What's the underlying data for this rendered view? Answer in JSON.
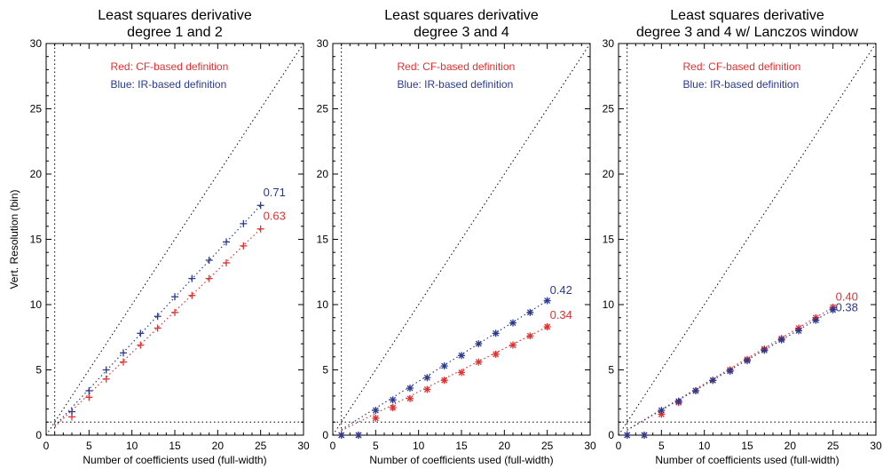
{
  "colors": {
    "red": "#e03131",
    "blue": "#2b3a8f",
    "axis": "#000000"
  },
  "ylabel_shared": "Vert. Resolution (bin)",
  "chart_data": [
    {
      "type": "scatter",
      "title": [
        "Least squares derivative",
        "degree 1 and 2"
      ],
      "xlabel": "Number of coefficients used (full-width)",
      "ylabel": "Vert. Resolution (bin)",
      "xlim": [
        0,
        30
      ],
      "ylim": [
        0,
        30
      ],
      "xticks": [
        "0",
        "5",
        "10",
        "15",
        "20",
        "25",
        "30"
      ],
      "yticks": [
        "0",
        "5",
        "10",
        "15",
        "20",
        "25",
        "30"
      ],
      "marker": "plus",
      "legend": [
        "Red: CF-based definition",
        "Blue: IR-based definition"
      ],
      "reference_lines": {
        "diagonal": true,
        "x_at": 1,
        "y_at": 1
      },
      "series": [
        {
          "color": "red",
          "x": [
            3,
            5,
            7,
            9,
            11,
            13,
            15,
            17,
            19,
            21,
            23,
            25
          ],
          "y": [
            1.4,
            2.9,
            4.3,
            5.6,
            6.9,
            8.2,
            9.4,
            10.7,
            12.0,
            13.2,
            14.5,
            15.8
          ],
          "fit_from": [
            1,
            0.63
          ],
          "fit_to": [
            25,
            15.8
          ],
          "slope_label": "0.63",
          "slope_label_pos": [
            25.3,
            16.5
          ]
        },
        {
          "color": "blue",
          "x": [
            3,
            5,
            7,
            9,
            11,
            13,
            15,
            17,
            19,
            21,
            23,
            25
          ],
          "y": [
            1.8,
            3.4,
            5.0,
            6.3,
            7.8,
            9.1,
            10.6,
            12.0,
            13.4,
            14.8,
            16.2,
            17.6
          ],
          "fit_from": [
            1,
            0.71
          ],
          "fit_to": [
            25,
            17.6
          ],
          "slope_label": "0.71",
          "slope_label_pos": [
            25.3,
            18.3
          ]
        }
      ]
    },
    {
      "type": "scatter",
      "title": [
        "Least squares derivative",
        "degree 3 and 4"
      ],
      "xlabel": "Number of coefficients used (full-width)",
      "ylabel": "",
      "xlim": [
        0,
        30
      ],
      "ylim": [
        0,
        30
      ],
      "xticks": [
        "0",
        "5",
        "10",
        "15",
        "20",
        "25",
        "30"
      ],
      "yticks": [
        "0",
        "5",
        "10",
        "15",
        "20",
        "25",
        "30"
      ],
      "marker": "asterisk",
      "legend": [
        "Red: CF-based definition",
        "Blue: IR-based definition"
      ],
      "reference_lines": {
        "diagonal": true,
        "x_at": 1,
        "y_at": 1
      },
      "series": [
        {
          "color": "red",
          "x": [
            1,
            3,
            5,
            7,
            9,
            11,
            13,
            15,
            17,
            19,
            21,
            23,
            25
          ],
          "y": [
            0,
            0,
            1.3,
            2.1,
            2.8,
            3.5,
            4.2,
            4.8,
            5.6,
            6.2,
            6.9,
            7.6,
            8.3
          ],
          "fit_from": [
            1,
            0.34
          ],
          "fit_to": [
            25,
            8.3
          ],
          "slope_label": "0.34",
          "slope_label_pos": [
            25.3,
            8.9
          ]
        },
        {
          "color": "blue",
          "x": [
            1,
            3,
            5,
            7,
            9,
            11,
            13,
            15,
            17,
            19,
            21,
            23,
            25
          ],
          "y": [
            0,
            0,
            1.9,
            2.7,
            3.6,
            4.4,
            5.3,
            6.1,
            7.0,
            7.8,
            8.6,
            9.4,
            10.3
          ],
          "fit_from": [
            1,
            0.42
          ],
          "fit_to": [
            25,
            10.3
          ],
          "slope_label": "0.42",
          "slope_label_pos": [
            25.3,
            10.8
          ]
        }
      ]
    },
    {
      "type": "scatter",
      "title": [
        "Least squares derivative",
        "degree 3 and 4 w/ Lanczos window"
      ],
      "xlabel": "Number of coefficients used (full-width)",
      "ylabel": "",
      "xlim": [
        0,
        30
      ],
      "ylim": [
        0,
        30
      ],
      "xticks": [
        "0",
        "5",
        "10",
        "15",
        "20",
        "25",
        "30"
      ],
      "yticks": [
        "0",
        "5",
        "10",
        "15",
        "20",
        "25",
        "30"
      ],
      "marker": "asterisk",
      "legend": [
        "Red: CF-based definition",
        "Blue: IR-based definition"
      ],
      "reference_lines": {
        "diagonal": true,
        "x_at": 1,
        "y_at": 1
      },
      "series": [
        {
          "color": "red",
          "x": [
            1,
            3,
            5,
            7,
            9,
            11,
            13,
            15,
            17,
            19,
            21,
            23,
            25
          ],
          "y": [
            0,
            0,
            1.6,
            2.5,
            3.4,
            4.2,
            5.0,
            5.8,
            6.6,
            7.4,
            8.2,
            9.0,
            9.8
          ],
          "fit_from": [
            1,
            0.4
          ],
          "fit_to": [
            25,
            9.8
          ],
          "slope_label": "0.40",
          "slope_label_pos": [
            25.3,
            10.3
          ]
        },
        {
          "color": "blue",
          "x": [
            1,
            3,
            5,
            7,
            9,
            11,
            13,
            15,
            17,
            19,
            21,
            23,
            25
          ],
          "y": [
            0,
            0,
            1.9,
            2.6,
            3.4,
            4.2,
            4.9,
            5.7,
            6.5,
            7.3,
            8.0,
            8.8,
            9.6
          ],
          "fit_from": [
            1,
            0.38
          ],
          "fit_to": [
            25,
            9.6
          ],
          "slope_label": "0.38",
          "slope_label_pos": [
            25.3,
            9.5
          ]
        }
      ]
    }
  ]
}
